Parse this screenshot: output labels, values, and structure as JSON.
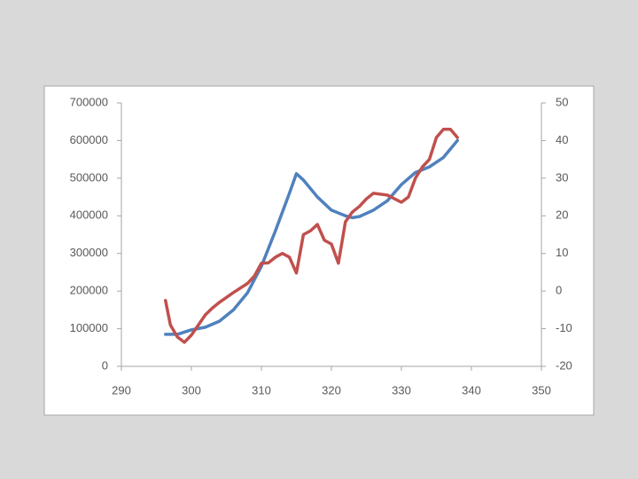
{
  "chart_data": {
    "type": "line",
    "xlim": [
      290,
      350
    ],
    "xticks": [
      290,
      300,
      310,
      320,
      330,
      340,
      350
    ],
    "ylim": [
      0,
      700000
    ],
    "yticks": [
      0,
      100000,
      200000,
      300000,
      400000,
      500000,
      600000,
      700000
    ],
    "y2lim": [
      -20,
      50
    ],
    "y2ticks": [
      -20,
      -10,
      0,
      10,
      20,
      30,
      40,
      50
    ],
    "series": [
      {
        "color": "#4f81bd",
        "x": [
          296.3,
          298,
          300,
          302,
          304,
          306,
          308,
          310,
          312,
          314,
          315,
          316,
          318,
          320,
          322,
          323,
          324,
          326,
          328,
          330,
          332,
          334,
          336,
          338
        ],
        "values": [
          85000,
          85000,
          97000,
          104000,
          120000,
          150000,
          195000,
          266000,
          360000,
          460000,
          512000,
          495000,
          450000,
          415000,
          400000,
          395000,
          398000,
          415000,
          440000,
          483000,
          515000,
          530000,
          555000,
          600000
        ]
      },
      {
        "color": "#c0504d",
        "axis": "y2",
        "x": [
          296.3,
          297,
          298,
          299,
          300,
          301,
          302,
          303,
          304,
          306,
          308,
          309,
          310,
          311,
          312,
          313,
          314,
          315,
          316,
          317,
          318,
          319,
          320,
          321,
          322,
          323,
          324,
          325,
          326,
          328,
          330,
          331,
          332,
          333,
          334,
          335,
          336,
          337,
          338
        ],
        "values": [
          -2.5,
          -9,
          -12.2,
          -13.6,
          -11.7,
          -9,
          -6.3,
          -4.5,
          -3,
          -0.4,
          2,
          4,
          7.4,
          7.5,
          9,
          10,
          9,
          4.8,
          15,
          16,
          17.7,
          13.5,
          12.5,
          7.4,
          18.4,
          21,
          22.5,
          24.5,
          26,
          25.5,
          23.6,
          25,
          30,
          33,
          35,
          40.8,
          43,
          43,
          40.8
        ]
      }
    ]
  }
}
